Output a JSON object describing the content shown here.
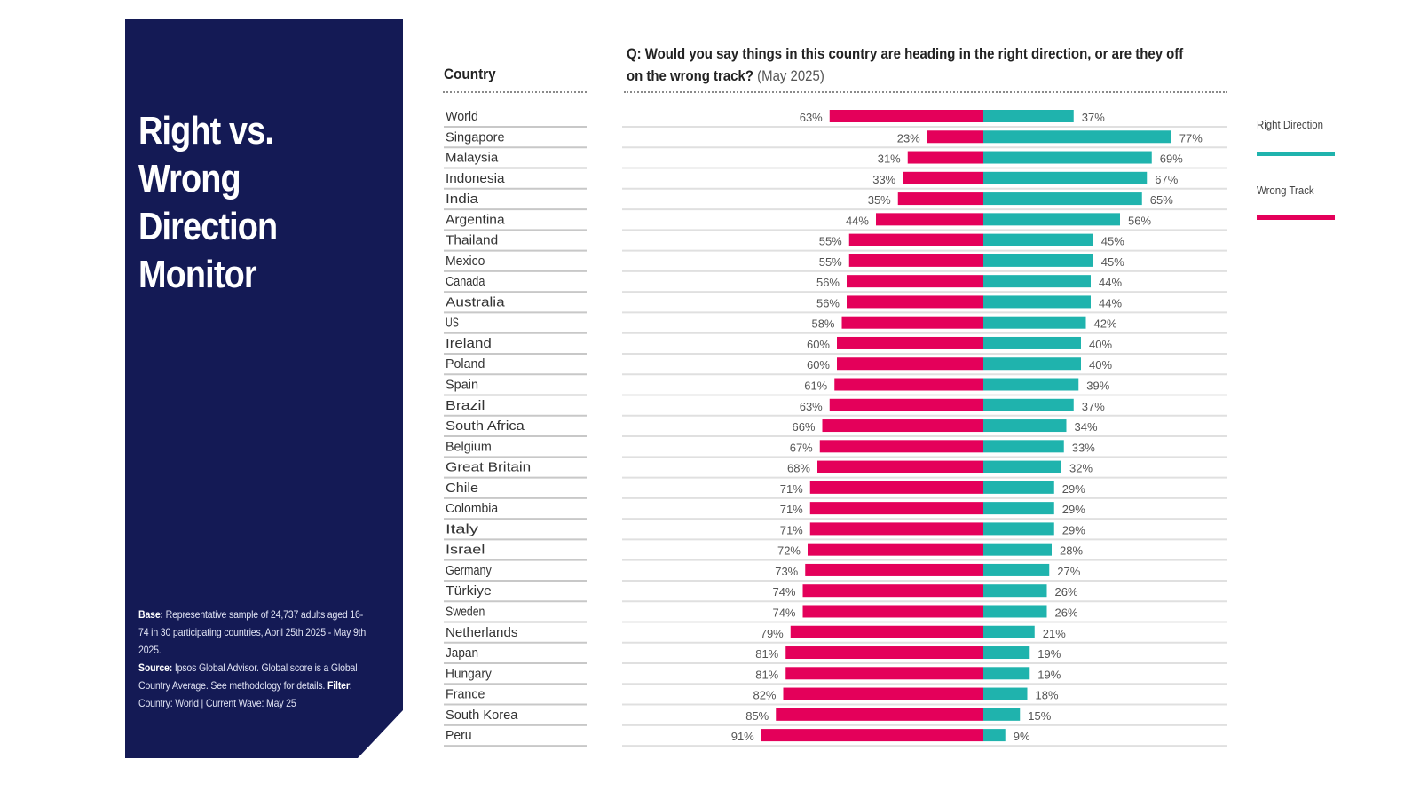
{
  "panel": {
    "title_lines": [
      "Right vs.",
      "Wrong",
      "Direction",
      "Monitor"
    ],
    "notes": {
      "base_label": "Base:",
      "base_text": " Representative sample of 24,737 adults aged 16-74 in 30 participating countries, April 25th 2025 - May 9th 2025.",
      "source_label": "Source:",
      "source_text": " Ipsos Global Advisor. Global score is a Global Country Average. See methodology for details.",
      "filter_label": " Filter",
      "filter_text": ": Country: World | Current Wave: May 25"
    }
  },
  "colors": {
    "panel_bg": "#141a55",
    "right_direction": "#1fb3ad",
    "wrong_track": "#e4005a"
  },
  "chart_data": {
    "type": "bar",
    "subtype": "diverging-horizontal",
    "title": "Q: Would you say things in this country are heading in the right direction, or are they off on the wrong track?",
    "title_suffix": "(May 2025)",
    "category_header": "Country",
    "xlabel": "",
    "ylabel": "",
    "xlim": [
      0,
      100
    ],
    "unit": "%",
    "grid": false,
    "legend_position": "right",
    "categories": [
      "World",
      "Singapore",
      "Malaysia",
      "Indonesia",
      "India",
      "Argentina",
      "Thailand",
      "Mexico",
      "Canada",
      "Australia",
      "US",
      "Ireland",
      "Poland",
      "Spain",
      "Brazil",
      "South Africa",
      "Belgium",
      "Great Britain",
      "Chile",
      "Colombia",
      "Italy",
      "Israel",
      "Germany",
      "Türkiye",
      "Sweden",
      "Netherlands",
      "Japan",
      "Hungary",
      "France",
      "South Korea",
      "Peru"
    ],
    "series": [
      {
        "name": "Wrong Track",
        "side": "left",
        "values": [
          63,
          23,
          31,
          33,
          35,
          44,
          55,
          55,
          56,
          56,
          58,
          60,
          60,
          61,
          63,
          66,
          67,
          68,
          71,
          71,
          71,
          72,
          73,
          74,
          74,
          79,
          81,
          81,
          82,
          85,
          91
        ]
      },
      {
        "name": "Right Direction",
        "side": "right",
        "values": [
          37,
          77,
          69,
          67,
          65,
          56,
          45,
          45,
          44,
          44,
          42,
          40,
          40,
          39,
          37,
          34,
          33,
          32,
          29,
          29,
          29,
          28,
          27,
          26,
          26,
          21,
          19,
          19,
          18,
          15,
          9
        ]
      }
    ]
  },
  "legend": [
    {
      "label": "Right Direction"
    },
    {
      "label": "Wrong Track"
    }
  ]
}
